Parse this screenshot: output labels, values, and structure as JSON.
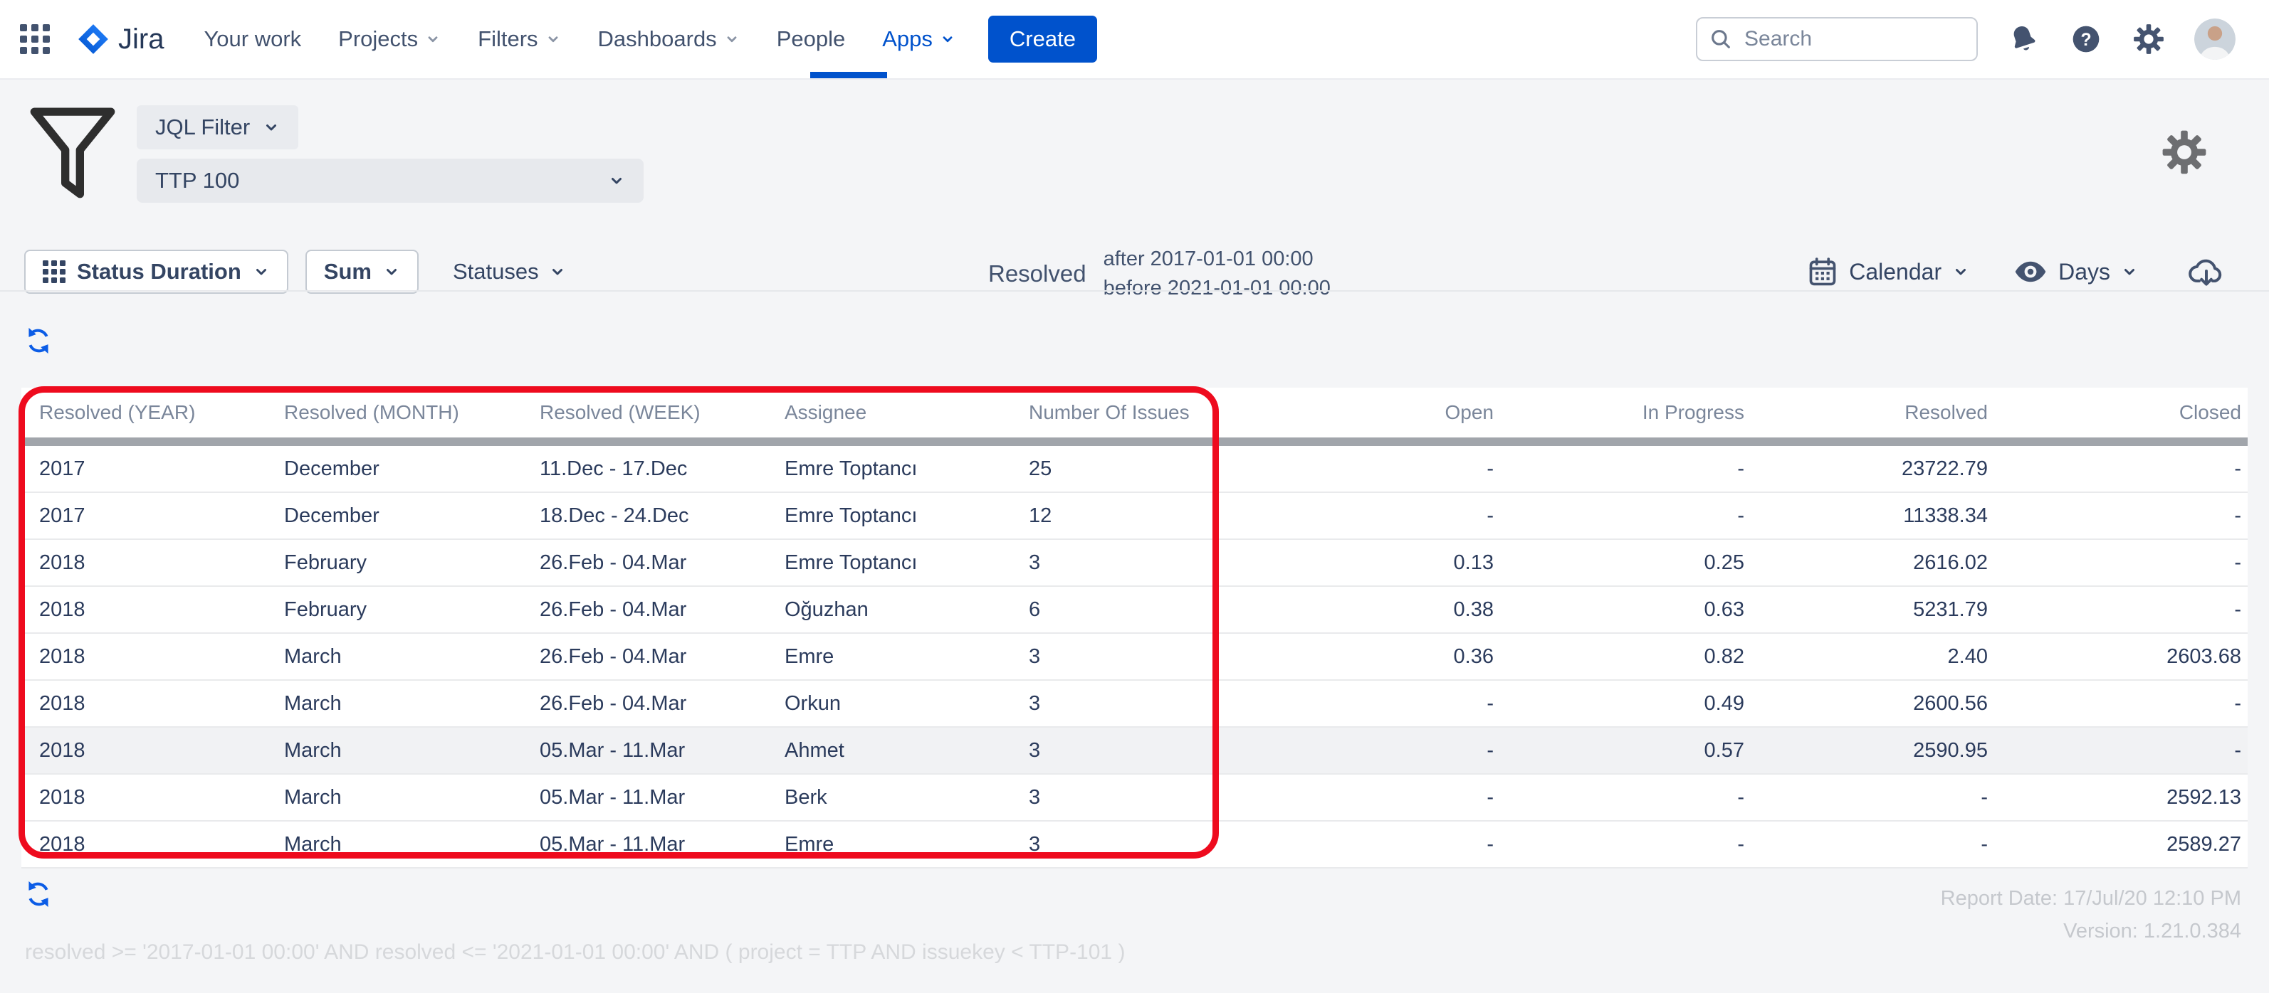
{
  "nav": {
    "brand": "Jira",
    "items": [
      {
        "label": "Your work",
        "chevron": false,
        "active": false
      },
      {
        "label": "Projects",
        "chevron": true,
        "active": false
      },
      {
        "label": "Filters",
        "chevron": true,
        "active": false
      },
      {
        "label": "Dashboards",
        "chevron": true,
        "active": false
      },
      {
        "label": "People",
        "chevron": false,
        "active": false
      },
      {
        "label": "Apps",
        "chevron": true,
        "active": true
      }
    ],
    "create_label": "Create",
    "search_placeholder": "Search"
  },
  "filter": {
    "jql_filter_label": "JQL Filter",
    "selected_filter": "TTP 100"
  },
  "toolbar": {
    "status_duration_label": "Status Duration",
    "sum_label": "Sum",
    "statuses_label": "Statuses",
    "resolved_label": "Resolved",
    "resolved_after": "after 2017-01-01 00:00",
    "resolved_before": "before 2021-01-01 00:00",
    "calendar_label": "Calendar",
    "days_label": "Days"
  },
  "table": {
    "columns": [
      "Resolved (YEAR)",
      "Resolved (MONTH)",
      "Resolved (WEEK)",
      "Assignee",
      "Number Of Issues",
      "Open",
      "In Progress",
      "Resolved",
      "Closed"
    ],
    "rows": [
      [
        "2017",
        "December",
        "11.Dec - 17.Dec",
        "Emre Toptancı",
        "25",
        "-",
        "-",
        "23722.79",
        "-"
      ],
      [
        "2017",
        "December",
        "18.Dec - 24.Dec",
        "Emre Toptancı",
        "12",
        "-",
        "-",
        "11338.34",
        "-"
      ],
      [
        "2018",
        "February",
        "26.Feb - 04.Mar",
        "Emre Toptancı",
        "3",
        "0.13",
        "0.25",
        "2616.02",
        "-"
      ],
      [
        "2018",
        "February",
        "26.Feb - 04.Mar",
        "Oğuzhan",
        "6",
        "0.38",
        "0.63",
        "5231.79",
        "-"
      ],
      [
        "2018",
        "March",
        "26.Feb - 04.Mar",
        "Emre",
        "3",
        "0.36",
        "0.82",
        "2.40",
        "2603.68"
      ],
      [
        "2018",
        "March",
        "26.Feb - 04.Mar",
        "Orkun",
        "3",
        "-",
        "0.49",
        "2600.56",
        "-"
      ],
      [
        "2018",
        "March",
        "05.Mar - 11.Mar",
        "Ahmet",
        "3",
        "-",
        "0.57",
        "2590.95",
        "-"
      ],
      [
        "2018",
        "March",
        "05.Mar - 11.Mar",
        "Berk",
        "3",
        "-",
        "-",
        "-",
        "2592.13"
      ],
      [
        "2018",
        "March",
        "05.Mar - 11.Mar",
        "Emre",
        "3",
        "-",
        "-",
        "-",
        "2589.27"
      ]
    ],
    "highlighted_row": 6
  },
  "footer": {
    "report_date": "Report Date: 17/Jul/20 12:10 PM",
    "version": "Version: 1.21.0.384",
    "jql_query": "resolved >= '2017-01-01 00:00' AND resolved <= '2021-01-01 00:00' AND ( project = TTP AND issuekey < TTP-101 )"
  },
  "icons": {
    "app-switcher": "grid-of-dots",
    "search": "magnifier",
    "notifications": "bell",
    "help": "question-circle",
    "settings": "gear",
    "filter": "funnel",
    "calendar": "calendar",
    "days": "eye",
    "export": "cloud-download",
    "refresh": "circular-arrows"
  },
  "colors": {
    "accent_blue": "#0052cc",
    "annotation_red": "#ee0b1e",
    "page_bg": "#f4f5f7",
    "header_divider": "#a1a5ab",
    "text_dark": "#2b3b5c",
    "text_header": "#7a869a",
    "highlight_row": "#f1f2f4"
  }
}
